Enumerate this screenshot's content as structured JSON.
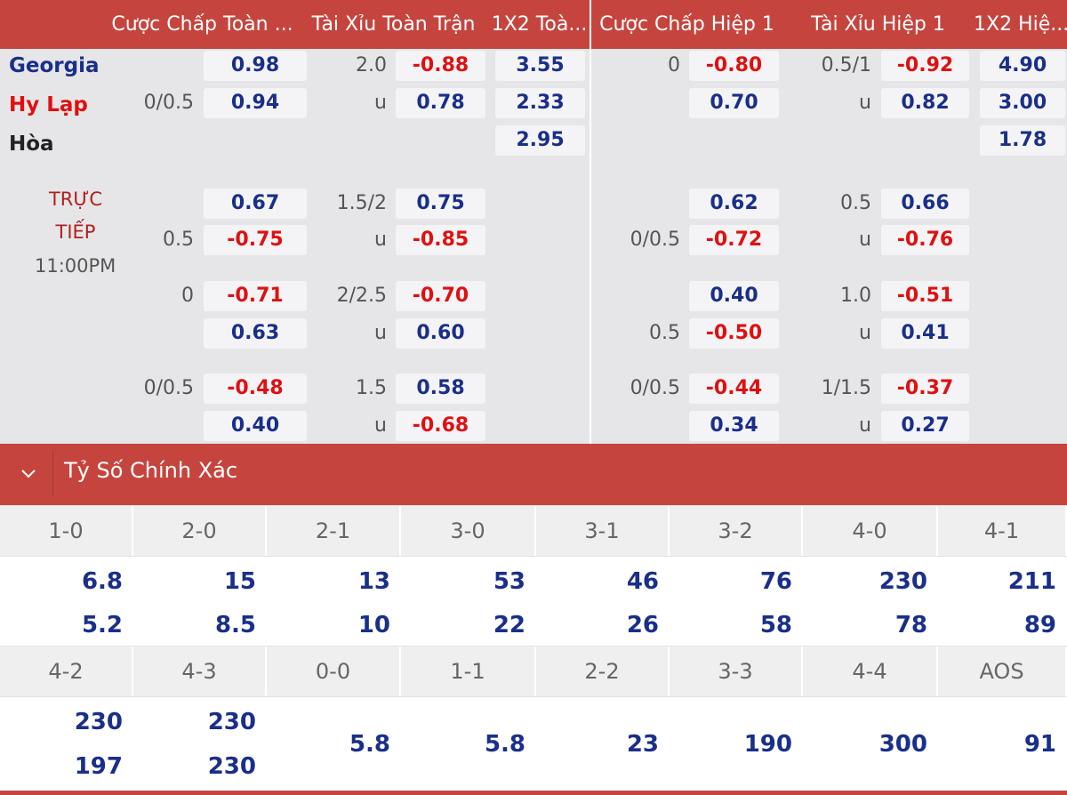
{
  "headers": [
    "Cược Chấp Toàn ...",
    "Tài Xỉu Toàn Trận",
    "1X2 Toà...",
    "Cược Chấp Hiệp 1",
    "Tài Xỉu Hiệp 1",
    "1X2 Hiệ..."
  ],
  "teams": {
    "home": "Georgia",
    "away": "Hy Lạp",
    "draw": "Hòa"
  },
  "main_row": {
    "ah_ft_line": "0/0.5",
    "ah_ft_home": "0.98",
    "ah_ft_away": "0.94",
    "ou_ft_line": "2.0",
    "ou_ft_over": "-0.88",
    "ou_ft_u": "u",
    "ou_ft_under": "0.78",
    "x12_ft_home": "3.55",
    "x12_ft_away": "2.33",
    "x12_ft_draw": "2.95",
    "ah_h1_line": "0",
    "ah_h1_home": "-0.80",
    "ah_h1_away": "0.70",
    "ou_h1_line": "0.5/1",
    "ou_h1_over": "-0.92",
    "ou_h1_u": "u",
    "ou_h1_under": "0.82",
    "x12_h1_home": "4.90",
    "x12_h1_away": "3.00",
    "x12_h1_draw": "1.78"
  },
  "live": {
    "line1": "TRỰC",
    "line2": "TIẾP",
    "time": "11:00PM"
  },
  "alt_rows": [
    {
      "ah_line_top": "",
      "ah_line_bot": "0.5",
      "ah_top": "0.67",
      "ah_bot": "-0.75",
      "ou_line": "1.5/2",
      "ou_top": "0.75",
      "ou_bot": "-0.85",
      "h1_ah_line_top": "",
      "h1_ah_line_bot": "0/0.5",
      "h1_ah_top": "0.62",
      "h1_ah_bot": "-0.72",
      "h1_ou_line": "0.5",
      "h1_ou_top": "0.66",
      "h1_ou_bot": "-0.76"
    },
    {
      "ah_line_top": "0",
      "ah_line_bot": "",
      "ah_top": "-0.71",
      "ah_bot": "0.63",
      "ou_line": "2/2.5",
      "ou_top": "-0.70",
      "ou_bot": "0.60",
      "h1_ah_line_top": "",
      "h1_ah_line_bot": "0.5",
      "h1_ah_top": "0.40",
      "h1_ah_bot": "-0.50",
      "h1_ou_line": "1.0",
      "h1_ou_top": "-0.51",
      "h1_ou_bot": "0.41"
    },
    {
      "ah_line_top": "0/0.5",
      "ah_line_bot": "",
      "ah_top": "-0.48",
      "ah_bot": "0.40",
      "ou_line": "1.5",
      "ou_top": "0.58",
      "ou_bot": "-0.68",
      "h1_ah_line_top": "0/0.5",
      "h1_ah_line_bot": "",
      "h1_ah_top": "-0.44",
      "h1_ah_bot": "0.34",
      "h1_ou_line": "1/1.5",
      "h1_ou_top": "-0.37",
      "h1_ou_bot": "0.27"
    }
  ],
  "u_label": "u",
  "correct_score": {
    "title": "Tỷ Số Chính Xác",
    "row1_labels": [
      "1-0",
      "2-0",
      "2-1",
      "3-0",
      "3-1",
      "3-2",
      "4-0",
      "4-1"
    ],
    "row1_top": [
      "6.8",
      "15",
      "13",
      "53",
      "46",
      "76",
      "230",
      "211"
    ],
    "row1_bot": [
      "5.2",
      "8.5",
      "10",
      "22",
      "26",
      "58",
      "78",
      "89"
    ],
    "row2_labels": [
      "4-2",
      "4-3",
      "0-0",
      "1-1",
      "2-2",
      "3-3",
      "4-4",
      "AOS"
    ],
    "row2_top": [
      "230",
      "230",
      "",
      "",
      "",
      "",
      "",
      ""
    ],
    "row2_bot": [
      "197",
      "230",
      "",
      "",
      "",
      "",
      "",
      ""
    ],
    "row2_single": [
      "",
      "",
      "5.8",
      "5.8",
      "23",
      "190",
      "300",
      "91"
    ]
  },
  "colors": {
    "header": "#c5453e",
    "odds_blue": "#1a2f8a",
    "odds_red": "#e01010",
    "panel": "#e6e6e8"
  }
}
